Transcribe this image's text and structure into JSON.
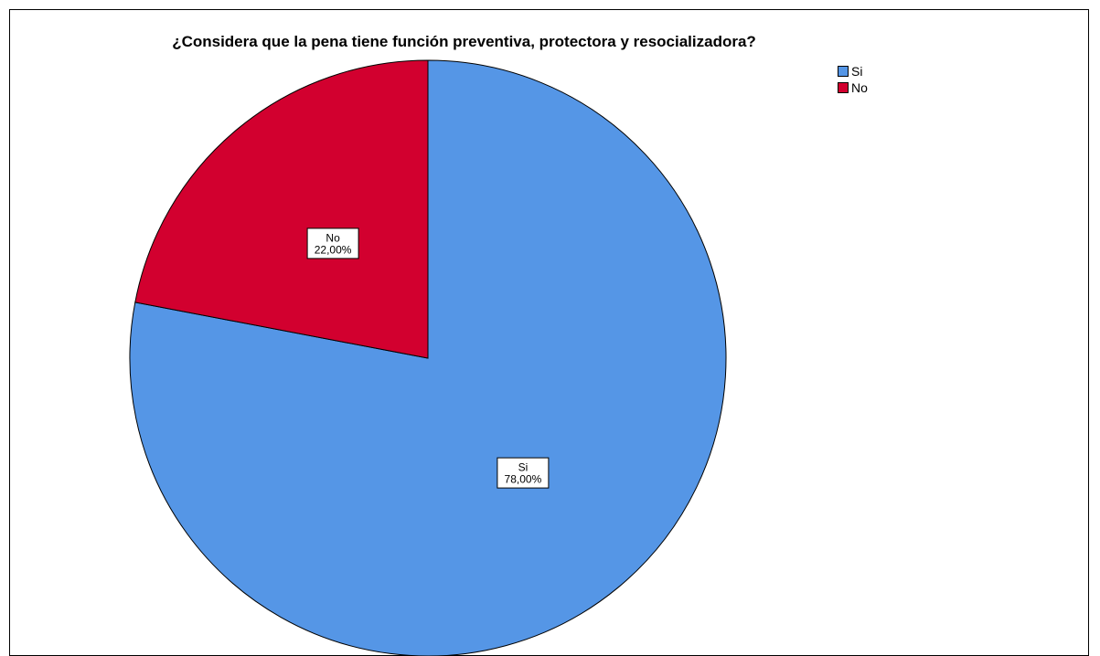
{
  "chart_data": {
    "type": "pie",
    "title": "¿Considera que la pena tiene función preventiva, protectora y resocializadora?",
    "slices": [
      {
        "name": "Si",
        "value": 78.0,
        "label": "78,00%",
        "color": "#5596E6"
      },
      {
        "name": "No",
        "value": 22.0,
        "label": "22,00%",
        "color": "#D2002F"
      }
    ],
    "legend": {
      "placement": "top-right",
      "entries": [
        "Si",
        "No"
      ]
    },
    "start_angle": "12 o'clock",
    "direction": "clockwise"
  }
}
